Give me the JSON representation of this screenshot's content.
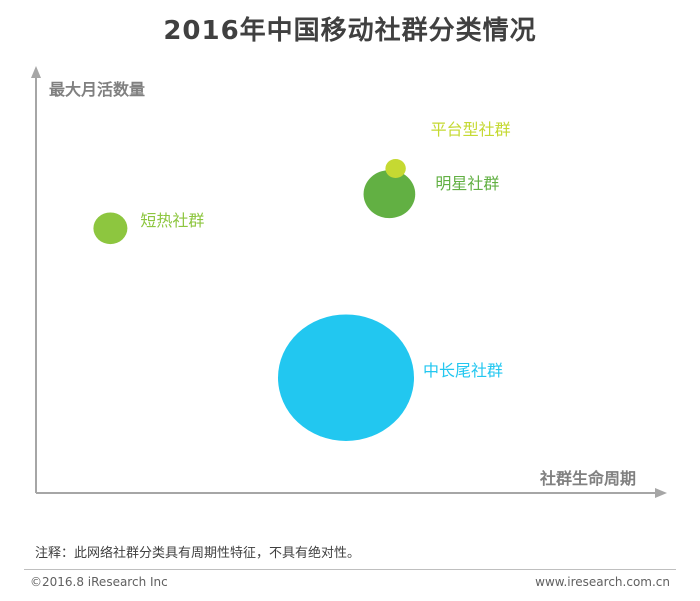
{
  "title": "2016年中国移动社群分类情况",
  "chart_data": {
    "type": "scatter",
    "xlabel": "社群生命周期",
    "ylabel": "最大月活数量",
    "grid": false,
    "legend": "none",
    "series": [
      {
        "name": "短热社群",
        "x": 0.12,
        "y": 0.62,
        "size": 0.25,
        "color": "#8dc63f"
      },
      {
        "name": "明星社群",
        "x": 0.57,
        "y": 0.7,
        "size": 0.38,
        "color": "#62b043"
      },
      {
        "name": "平台型社群",
        "x": 0.58,
        "y": 0.76,
        "size": 0.15,
        "color": "#c5d932"
      },
      {
        "name": "中长尾社群",
        "x": 0.5,
        "y": 0.27,
        "size": 1.0,
        "color": "#22c7f0"
      }
    ]
  },
  "footnote": "注释：此网络社群分类具有周期性特征，不具有绝对性。",
  "footer": {
    "copyright": "©2016.8 iResearch Inc",
    "site": "www.iresearch.com.cn"
  },
  "colors": {
    "axis": "#999999",
    "title": "#404040"
  }
}
